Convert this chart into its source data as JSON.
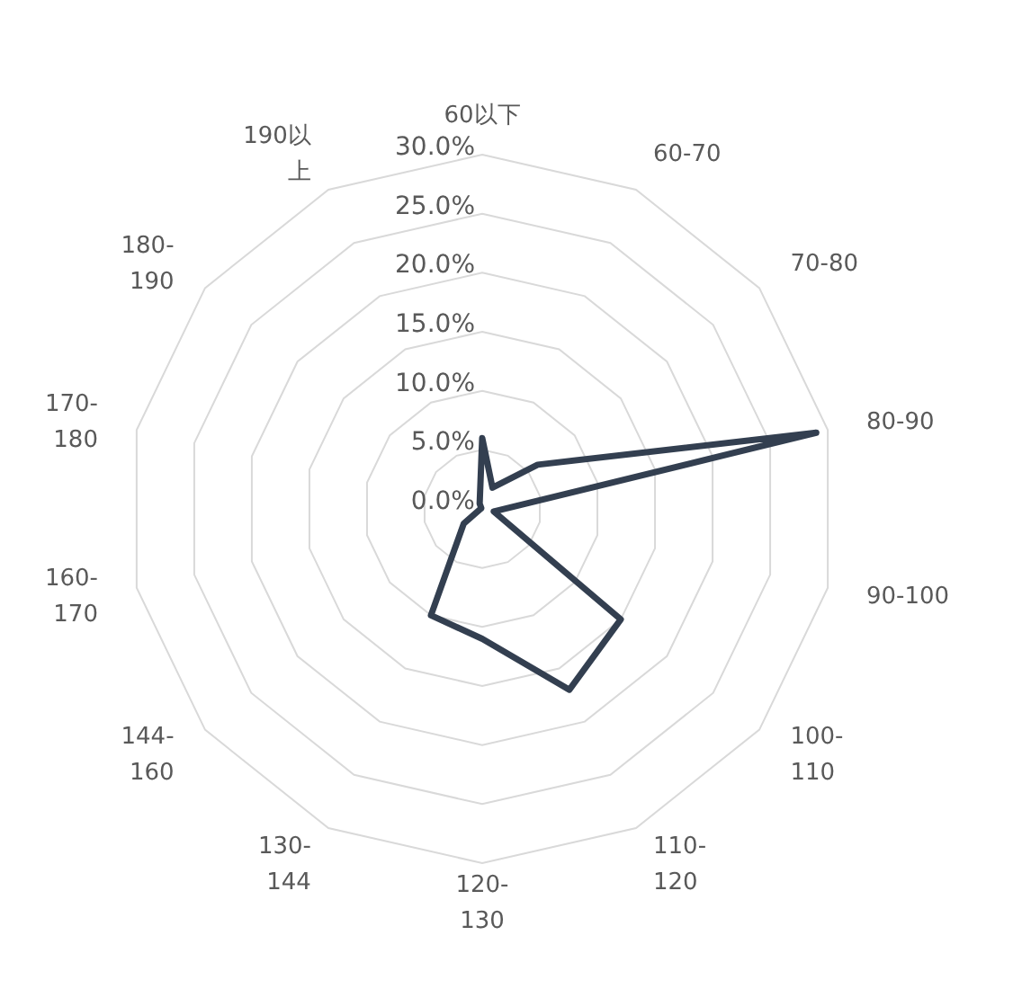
{
  "chart_data": {
    "type": "radar",
    "categories": [
      "60以下",
      "60-70",
      "70-80",
      "80-90",
      "90-100",
      "100-110",
      "110-120",
      "120-130",
      "130-144",
      "144-160",
      "160-170",
      "170-180",
      "180-190",
      "190以上"
    ],
    "series": [
      {
        "color": "#333f50",
        "values": [
          6,
          2,
          6,
          29,
          1,
          15,
          17,
          11,
          10,
          2,
          0.2,
          0.1,
          0.1,
          0.5
        ]
      }
    ],
    "ylim": [
      0,
      30
    ],
    "yticks": [
      {
        "value": 0,
        "label": "0.0%"
      },
      {
        "value": 5,
        "label": "5.0%"
      },
      {
        "value": 10,
        "label": "10.0%"
      },
      {
        "value": 15,
        "label": "15.0%"
      },
      {
        "value": 20,
        "label": "20.0%"
      },
      {
        "value": 25,
        "label": "25.0%"
      },
      {
        "value": 30,
        "label": "30.0%"
      }
    ],
    "grid": true,
    "legend": false,
    "marker": "none",
    "line_style": "solid"
  }
}
